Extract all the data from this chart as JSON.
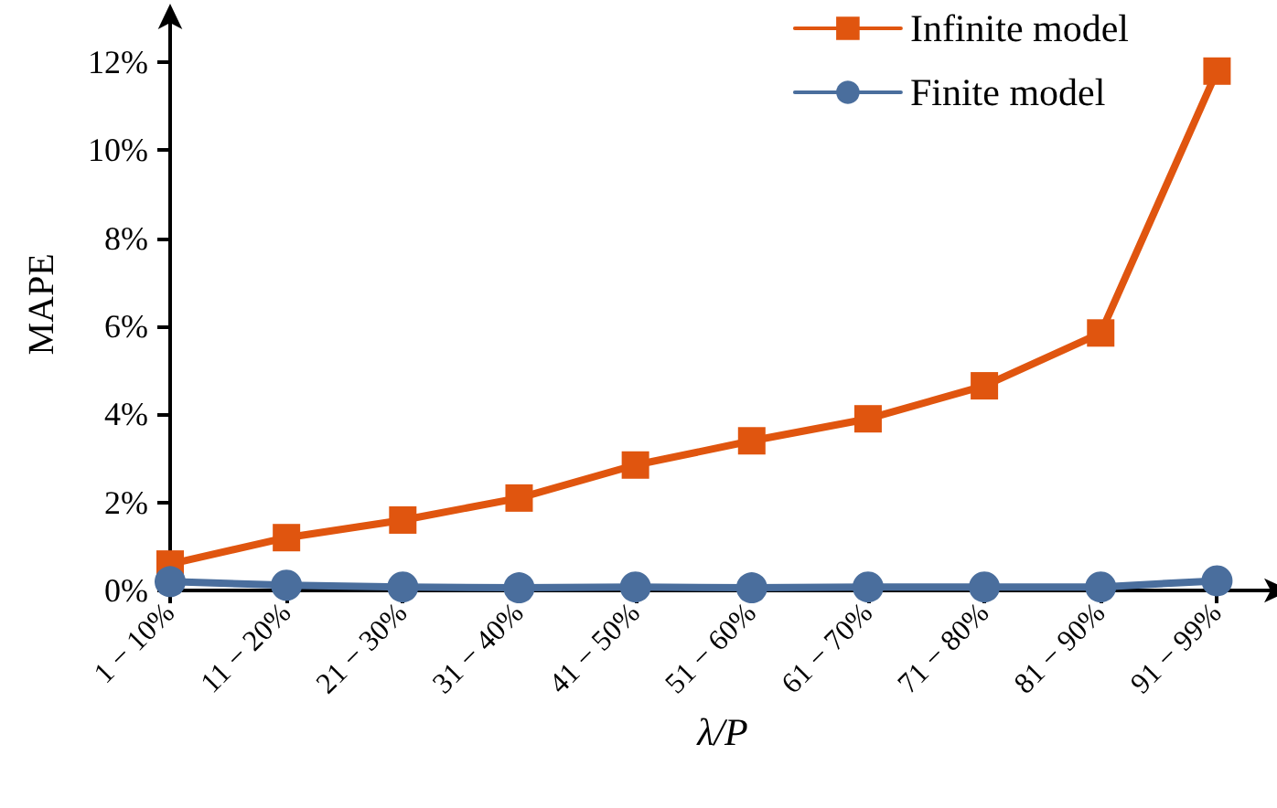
{
  "chart_data": {
    "type": "line",
    "xlabel": "λ/P",
    "ylabel": "MAPE",
    "categories": [
      "1 − 10%",
      "11 − 20%",
      "21 − 30%",
      "31 − 40%",
      "41 − 50%",
      "51 − 60%",
      "61 − 70%",
      "71 − 80%",
      "81 − 90%",
      "91 − 99%"
    ],
    "series": [
      {
        "name": "Infinite model",
        "color": "#e0550f",
        "marker": "square",
        "values": [
          0.6,
          1.2,
          1.6,
          2.1,
          2.85,
          3.4,
          3.9,
          4.65,
          5.85,
          11.8
        ]
      },
      {
        "name": "Finite model",
        "color": "#4a6e9d",
        "marker": "circle",
        "values": [
          0.2,
          0.12,
          0.08,
          0.06,
          0.08,
          0.06,
          0.08,
          0.08,
          0.08,
          0.22
        ]
      }
    ],
    "ylim": [
      0,
      13
    ],
    "yticks": [
      {
        "value": 0,
        "label": "0%"
      },
      {
        "value": 2,
        "label": "2%"
      },
      {
        "value": 4,
        "label": "4%"
      },
      {
        "value": 6,
        "label": "6%"
      },
      {
        "value": 8,
        "label": "8%"
      },
      {
        "value": 10,
        "label": "10%"
      },
      {
        "value": 12,
        "label": "12%"
      }
    ],
    "legend": "top right",
    "line_style": "solid"
  }
}
